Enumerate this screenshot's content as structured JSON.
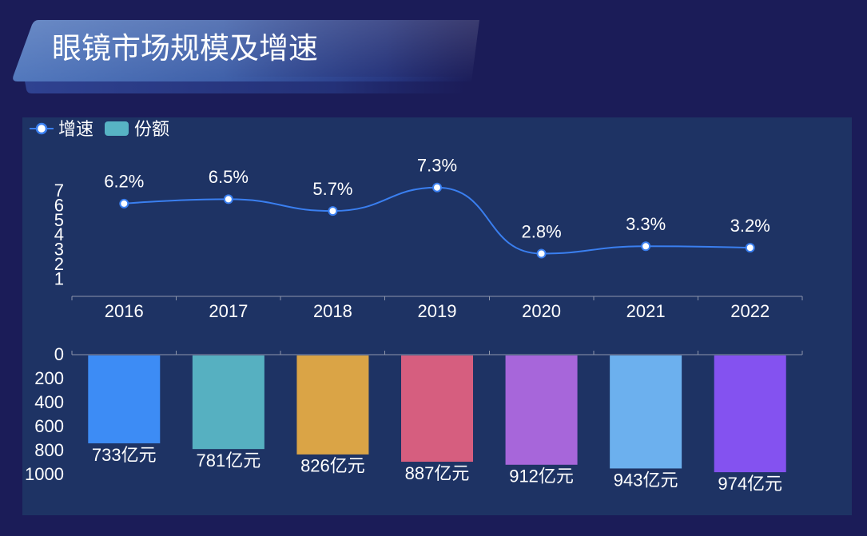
{
  "chart_data": {
    "type": "line",
    "title": "眼镜市场规模及增速",
    "categories": [
      "2016",
      "2017",
      "2018",
      "2019",
      "2020",
      "2021",
      "2022"
    ],
    "legend_position": "top-left",
    "grid": false,
    "series": [
      {
        "name": "增速",
        "type": "line",
        "smooth": true,
        "color": "#3a7ff0",
        "values": [
          6.2,
          6.5,
          5.7,
          7.3,
          2.8,
          3.3,
          3.2
        ],
        "labels": [
          "6.2%",
          "6.5%",
          "5.7%",
          "7.3%",
          "2.8%",
          "3.3%",
          "3.2%"
        ],
        "y_axis": {
          "ticks": [
            "1",
            "2",
            "3",
            "4",
            "5",
            "6",
            "7"
          ],
          "range": [
            0,
            7.3
          ]
        }
      },
      {
        "name": "份额",
        "type": "bar",
        "color": "#57b3c4",
        "values": [
          733,
          781,
          826,
          887,
          912,
          943,
          974
        ],
        "labels": [
          "733亿元",
          "781亿元",
          "826亿元",
          "887亿元",
          "912亿元",
          "943亿元",
          "974亿元"
        ],
        "bar_colors": [
          "#3d8cf5",
          "#56b0c1",
          "#daa446",
          "#d65e7f",
          "#a766da",
          "#6cb0ee",
          "#8452f0"
        ],
        "y_axis": {
          "ticks": [
            "0",
            "200",
            "400",
            "600",
            "800",
            "1000"
          ],
          "range": [
            0,
            1000
          ],
          "inverse": true
        }
      }
    ]
  }
}
